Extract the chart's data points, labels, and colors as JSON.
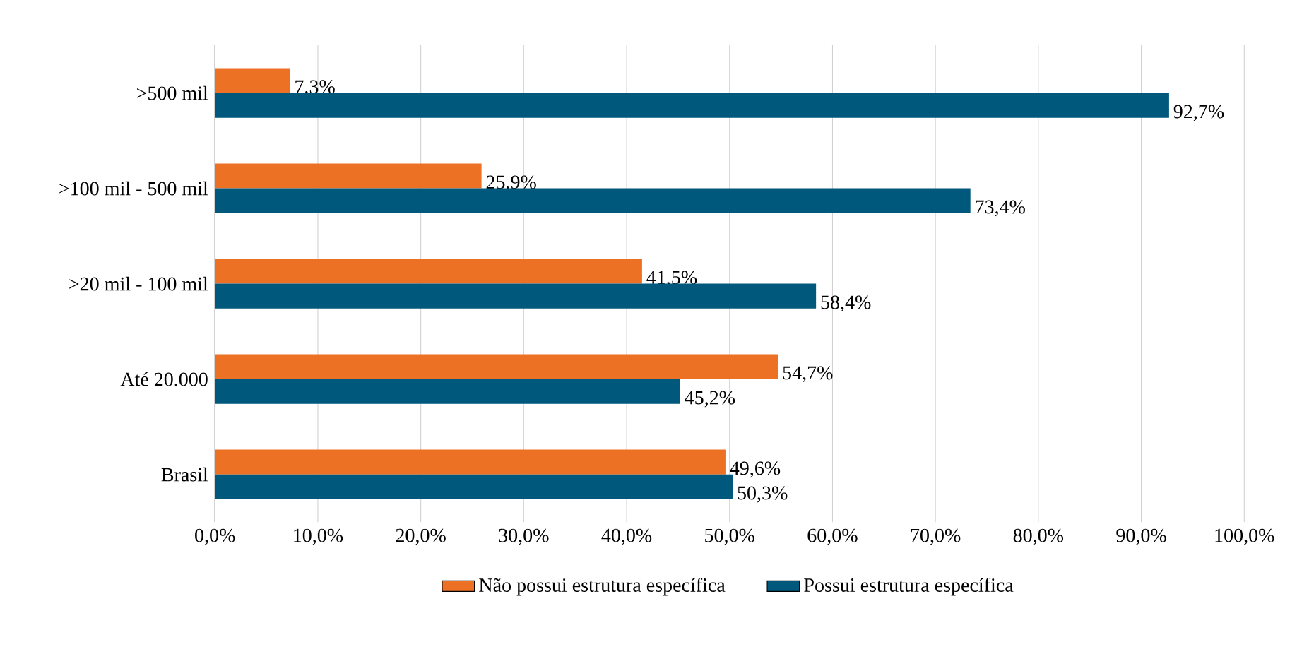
{
  "chart_data": {
    "type": "bar",
    "orientation": "horizontal",
    "categories": [
      ">500 mil",
      ">100 mil - 500 mil",
      ">20 mil - 100 mil",
      "Até 20.000",
      "Brasil"
    ],
    "series": [
      {
        "name": "Não possui estrutura específica",
        "color": "#ed7125",
        "values": [
          7.3,
          25.9,
          41.5,
          54.7,
          49.6
        ],
        "value_labels": [
          "7,3%",
          "25,9%",
          "41,5%",
          "54,7%",
          "49,6%"
        ]
      },
      {
        "name": "Possui estrutura específica",
        "color": "#00587c",
        "values": [
          92.7,
          73.4,
          58.4,
          45.2,
          50.3
        ],
        "value_labels": [
          "92,7%",
          "73,4%",
          "58,4%",
          "45,2%",
          "50,3%"
        ]
      }
    ],
    "xlim": [
      0,
      100
    ],
    "xticks": [
      {
        "value": 0,
        "label": "0,0%"
      },
      {
        "value": 10,
        "label": "10,0%"
      },
      {
        "value": 20,
        "label": "20,0%"
      },
      {
        "value": 30,
        "label": "30,0%"
      },
      {
        "value": 40,
        "label": "40,0%"
      },
      {
        "value": 50,
        "label": "50,0%"
      },
      {
        "value": 60,
        "label": "60,0%"
      },
      {
        "value": 70,
        "label": "70,0%"
      },
      {
        "value": 80,
        "label": "80,0%"
      },
      {
        "value": 90,
        "label": "90,0%"
      },
      {
        "value": 100,
        "label": "100,0%"
      }
    ],
    "grid": "x",
    "legend": "bottom"
  }
}
